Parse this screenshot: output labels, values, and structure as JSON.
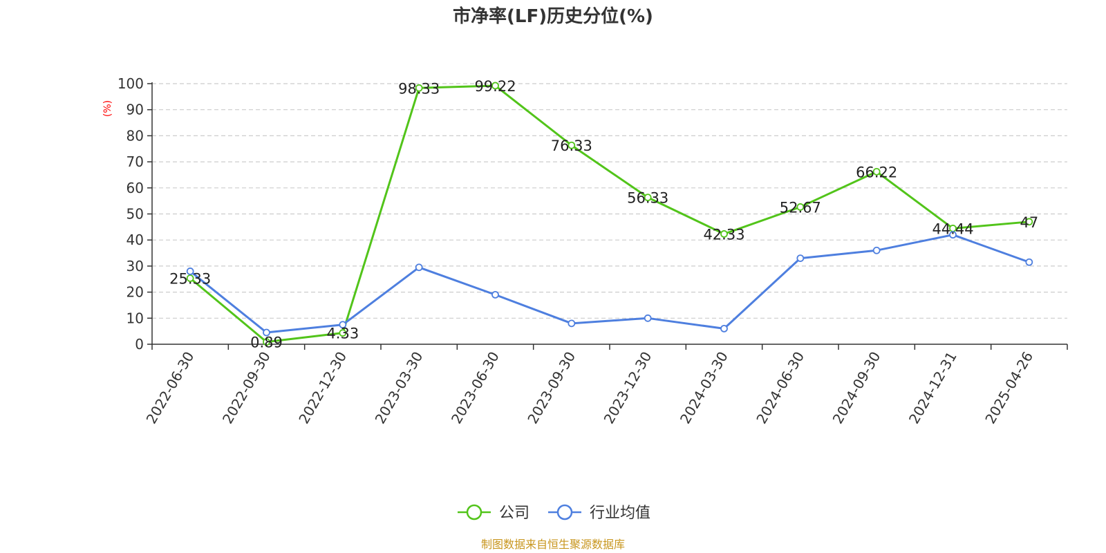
{
  "colors": {
    "company": "#52c41a",
    "industry": "#4e7fdf",
    "ylabel": "#ff0000",
    "source": "#c8961e",
    "grid": "#cccccc",
    "axis": "#333333"
  },
  "source_text": "制图数据来自恒生聚源数据库",
  "chart_data": {
    "type": "line",
    "title": "市净率(LF)历史分位(%)",
    "xlabel": "",
    "ylabel": "(%)",
    "ylim": [
      0,
      100
    ],
    "yticks": [
      0,
      10,
      20,
      30,
      40,
      50,
      60,
      70,
      80,
      90,
      100
    ],
    "grid": true,
    "legend_position": "bottom",
    "categories": [
      "2022-06-30",
      "2022-09-30",
      "2022-12-30",
      "2023-03-30",
      "2023-06-30",
      "2023-09-30",
      "2023-12-30",
      "2024-03-30",
      "2024-06-30",
      "2024-09-30",
      "2024-12-31",
      "2025-04-26"
    ],
    "series": [
      {
        "name": "公司",
        "color": "#52c41a",
        "values": [
          25.33,
          0.89,
          4.33,
          98.33,
          99.22,
          76.33,
          56.33,
          42.33,
          52.67,
          66.22,
          44.44,
          47
        ],
        "labels": [
          "25.33",
          "0.89",
          "4.33",
          "98.33",
          "99.22",
          "76.33",
          "56.33",
          "42.33",
          "52.67",
          "66.22",
          "44.44",
          "47"
        ]
      },
      {
        "name": "行业均值",
        "color": "#4e7fdf",
        "values": [
          28,
          4.5,
          7.5,
          29.5,
          19,
          8,
          10,
          6,
          33,
          36,
          42,
          31.5
        ]
      }
    ]
  }
}
